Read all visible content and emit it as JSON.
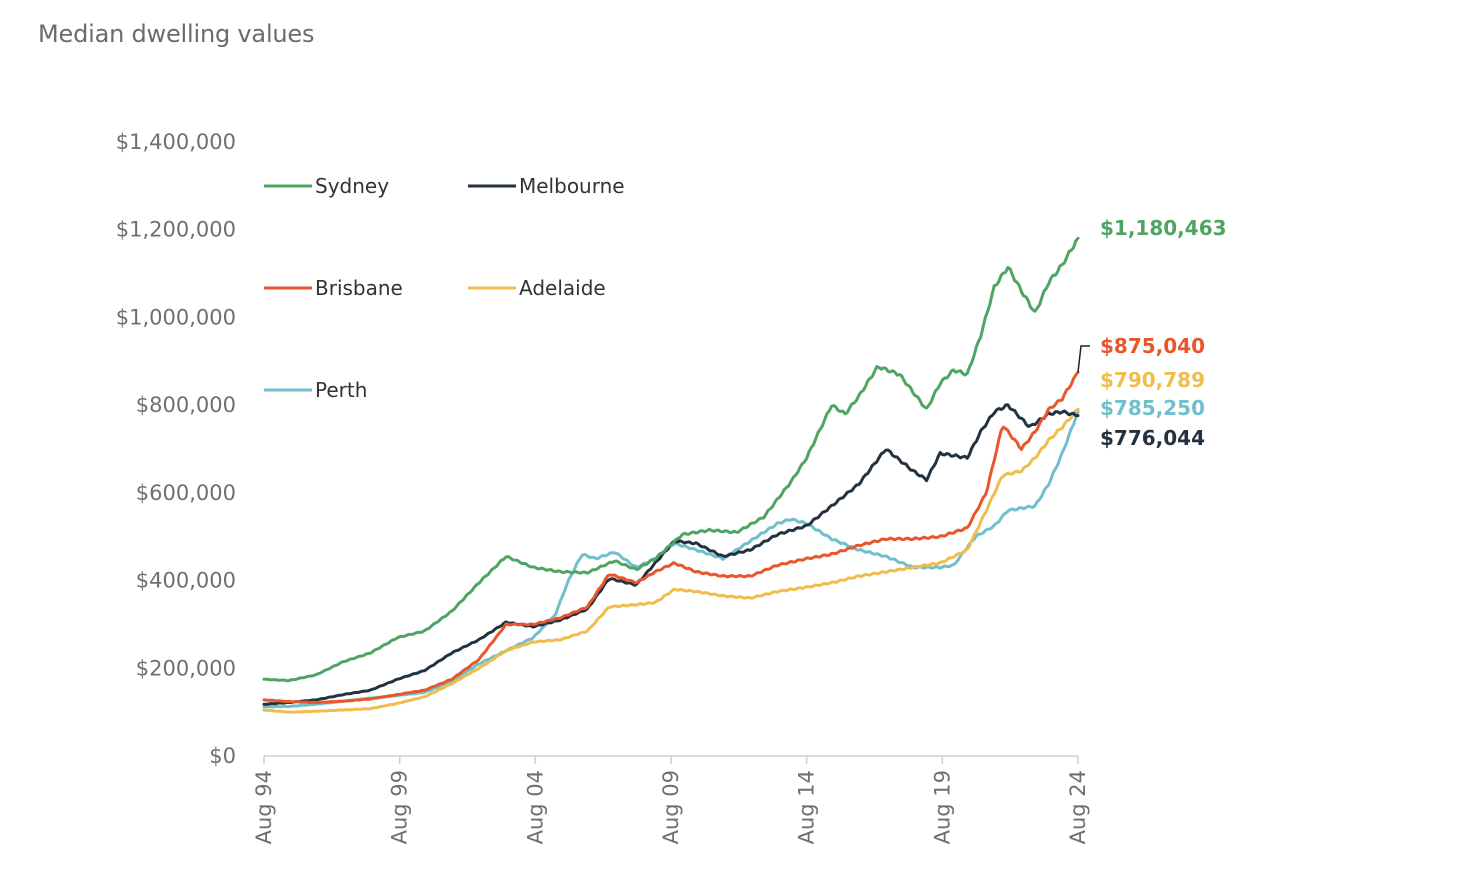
{
  "chart_data": {
    "type": "line",
    "title": "Median dwelling values",
    "xlabel": "",
    "ylabel": "",
    "ylim": [
      0,
      1400000
    ],
    "y_ticks": [
      0,
      200000,
      400000,
      600000,
      800000,
      1000000,
      1200000,
      1400000
    ],
    "y_tick_labels": [
      "$0",
      "$200,000",
      "$400,000",
      "$600,000",
      "$800,000",
      "$1,000,000",
      "$1,200,000",
      "$1,400,000"
    ],
    "x_ticks": [
      1994.58,
      1999.58,
      2004.58,
      2009.58,
      2014.58,
      2019.58,
      2024.58
    ],
    "x_tick_labels": [
      "Aug 94",
      "Aug 99",
      "Aug 04",
      "Aug 09",
      "Aug 14",
      "Aug 19",
      "Aug 24"
    ],
    "xlim": [
      1994.58,
      2024.58
    ],
    "grid": false,
    "legend_position": "top-left",
    "series": [
      {
        "name": "Sydney",
        "color": "#4fa463",
        "end_label": "$1,180,463",
        "points": [
          [
            1994.58,
            175000
          ],
          [
            1995.5,
            172000
          ],
          [
            1996.5,
            185000
          ],
          [
            1997.5,
            215000
          ],
          [
            1998.5,
            235000
          ],
          [
            1999.5,
            270000
          ],
          [
            2000.5,
            285000
          ],
          [
            2001.5,
            330000
          ],
          [
            2002.5,
            395000
          ],
          [
            2003.5,
            455000
          ],
          [
            2004.5,
            430000
          ],
          [
            2005.5,
            420000
          ],
          [
            2006.5,
            418000
          ],
          [
            2007.5,
            445000
          ],
          [
            2008.3,
            425000
          ],
          [
            2009.0,
            450000
          ],
          [
            2010.0,
            505000
          ],
          [
            2011.0,
            515000
          ],
          [
            2012.0,
            510000
          ],
          [
            2013.0,
            545000
          ],
          [
            2014.0,
            625000
          ],
          [
            2014.58,
            680000
          ],
          [
            2015.5,
            800000
          ],
          [
            2016.0,
            780000
          ],
          [
            2016.5,
            820000
          ],
          [
            2017.2,
            888000
          ],
          [
            2018.0,
            870000
          ],
          [
            2019.0,
            790000
          ],
          [
            2019.5,
            850000
          ],
          [
            2020.0,
            880000
          ],
          [
            2020.5,
            870000
          ],
          [
            2021.0,
            960000
          ],
          [
            2021.5,
            1070000
          ],
          [
            2022.0,
            1115000
          ],
          [
            2022.5,
            1060000
          ],
          [
            2023.0,
            1010000
          ],
          [
            2023.5,
            1080000
          ],
          [
            2024.0,
            1120000
          ],
          [
            2024.58,
            1180463
          ]
        ]
      },
      {
        "name": "Melbourne",
        "color": "#233240",
        "end_label": "$776,044",
        "points": [
          [
            1994.58,
            118000
          ],
          [
            1995.5,
            122000
          ],
          [
            1996.5,
            128000
          ],
          [
            1997.5,
            140000
          ],
          [
            1998.5,
            150000
          ],
          [
            1999.5,
            175000
          ],
          [
            2000.5,
            195000
          ],
          [
            2001.5,
            235000
          ],
          [
            2002.5,
            265000
          ],
          [
            2003.5,
            305000
          ],
          [
            2004.5,
            295000
          ],
          [
            2005.5,
            310000
          ],
          [
            2006.5,
            335000
          ],
          [
            2007.3,
            405000
          ],
          [
            2008.3,
            390000
          ],
          [
            2009.0,
            440000
          ],
          [
            2009.7,
            490000
          ],
          [
            2010.5,
            485000
          ],
          [
            2011.5,
            455000
          ],
          [
            2012.5,
            470000
          ],
          [
            2013.5,
            505000
          ],
          [
            2014.58,
            525000
          ],
          [
            2015.5,
            570000
          ],
          [
            2016.5,
            620000
          ],
          [
            2017.5,
            700000
          ],
          [
            2018.5,
            650000
          ],
          [
            2019.0,
            630000
          ],
          [
            2019.5,
            690000
          ],
          [
            2020.5,
            680000
          ],
          [
            2021.0,
            740000
          ],
          [
            2021.5,
            785000
          ],
          [
            2022.0,
            800000
          ],
          [
            2022.8,
            750000
          ],
          [
            2023.5,
            780000
          ],
          [
            2024.0,
            785000
          ],
          [
            2024.58,
            776044
          ]
        ]
      },
      {
        "name": "Brisbane",
        "color": "#e8562c",
        "end_label": "$875,040",
        "points": [
          [
            1994.58,
            128000
          ],
          [
            1995.5,
            124000
          ],
          [
            1996.5,
            122000
          ],
          [
            1997.5,
            125000
          ],
          [
            1998.5,
            130000
          ],
          [
            1999.5,
            140000
          ],
          [
            2000.5,
            150000
          ],
          [
            2001.5,
            175000
          ],
          [
            2002.5,
            220000
          ],
          [
            2003.5,
            300000
          ],
          [
            2004.5,
            300000
          ],
          [
            2005.5,
            315000
          ],
          [
            2006.5,
            340000
          ],
          [
            2007.3,
            415000
          ],
          [
            2008.3,
            395000
          ],
          [
            2009.0,
            420000
          ],
          [
            2009.7,
            440000
          ],
          [
            2010.5,
            420000
          ],
          [
            2011.5,
            410000
          ],
          [
            2012.5,
            410000
          ],
          [
            2013.5,
            435000
          ],
          [
            2014.58,
            450000
          ],
          [
            2015.5,
            460000
          ],
          [
            2016.5,
            480000
          ],
          [
            2017.5,
            495000
          ],
          [
            2018.5,
            495000
          ],
          [
            2019.5,
            500000
          ],
          [
            2020.5,
            520000
          ],
          [
            2021.2,
            600000
          ],
          [
            2021.8,
            755000
          ],
          [
            2022.5,
            700000
          ],
          [
            2023.0,
            740000
          ],
          [
            2023.5,
            790000
          ],
          [
            2024.0,
            815000
          ],
          [
            2024.58,
            875040
          ]
        ]
      },
      {
        "name": "Adelaide",
        "color": "#f0bd4c",
        "end_label": "$790,789",
        "points": [
          [
            1994.58,
            105000
          ],
          [
            1995.5,
            100000
          ],
          [
            1996.5,
            102000
          ],
          [
            1997.5,
            105000
          ],
          [
            1998.5,
            108000
          ],
          [
            1999.5,
            120000
          ],
          [
            2000.5,
            135000
          ],
          [
            2001.5,
            165000
          ],
          [
            2002.5,
            200000
          ],
          [
            2003.5,
            240000
          ],
          [
            2004.5,
            260000
          ],
          [
            2005.5,
            265000
          ],
          [
            2006.5,
            285000
          ],
          [
            2007.3,
            340000
          ],
          [
            2008.3,
            345000
          ],
          [
            2009.0,
            350000
          ],
          [
            2009.7,
            380000
          ],
          [
            2010.5,
            375000
          ],
          [
            2011.5,
            365000
          ],
          [
            2012.5,
            360000
          ],
          [
            2013.5,
            375000
          ],
          [
            2014.58,
            385000
          ],
          [
            2015.5,
            395000
          ],
          [
            2016.5,
            410000
          ],
          [
            2017.5,
            420000
          ],
          [
            2018.5,
            430000
          ],
          [
            2019.5,
            440000
          ],
          [
            2020.5,
            470000
          ],
          [
            2021.2,
            560000
          ],
          [
            2021.8,
            640000
          ],
          [
            2022.5,
            650000
          ],
          [
            2023.0,
            680000
          ],
          [
            2023.5,
            720000
          ],
          [
            2024.0,
            750000
          ],
          [
            2024.58,
            790789
          ]
        ]
      },
      {
        "name": "Perth",
        "color": "#6fbfcc",
        "end_label": "$785,250",
        "points": [
          [
            1994.58,
            112000
          ],
          [
            1995.5,
            113000
          ],
          [
            1996.5,
            118000
          ],
          [
            1997.5,
            125000
          ],
          [
            1998.5,
            132000
          ],
          [
            1999.5,
            138000
          ],
          [
            2000.5,
            145000
          ],
          [
            2001.5,
            170000
          ],
          [
            2002.5,
            210000
          ],
          [
            2003.5,
            240000
          ],
          [
            2004.5,
            270000
          ],
          [
            2005.3,
            320000
          ],
          [
            2005.8,
            400000
          ],
          [
            2006.3,
            460000
          ],
          [
            2006.8,
            450000
          ],
          [
            2007.5,
            465000
          ],
          [
            2008.3,
            430000
          ],
          [
            2009.0,
            450000
          ],
          [
            2009.7,
            485000
          ],
          [
            2010.5,
            470000
          ],
          [
            2011.5,
            450000
          ],
          [
            2012.5,
            490000
          ],
          [
            2013.5,
            530000
          ],
          [
            2014.0,
            540000
          ],
          [
            2014.58,
            530000
          ],
          [
            2015.5,
            495000
          ],
          [
            2016.5,
            470000
          ],
          [
            2017.5,
            455000
          ],
          [
            2018.5,
            430000
          ],
          [
            2019.5,
            430000
          ],
          [
            2020.0,
            435000
          ],
          [
            2020.8,
            500000
          ],
          [
            2021.5,
            525000
          ],
          [
            2022.0,
            560000
          ],
          [
            2023.0,
            570000
          ],
          [
            2023.5,
            620000
          ],
          [
            2024.0,
            690000
          ],
          [
            2024.58,
            785250
          ]
        ]
      }
    ]
  }
}
